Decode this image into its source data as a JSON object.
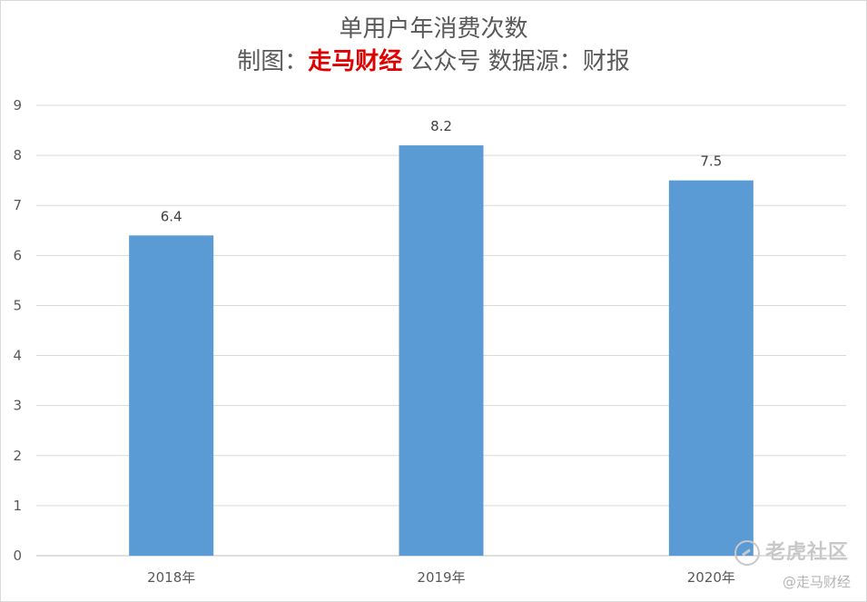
{
  "chart_data": {
    "type": "bar",
    "title_line1": "单用户年消费次数",
    "title_line2_prefix": "制图：",
    "title_line2_brand": "走马财经",
    "title_line2_suffix": " 公众号  数据源：财报",
    "categories": [
      "2018年",
      "2019年",
      "2020年"
    ],
    "values": [
      6.4,
      8.2,
      7.5
    ],
    "data_labels": [
      "6.4",
      "8.2",
      "7.5"
    ],
    "ylim": [
      0,
      9
    ],
    "yticks": [
      "0",
      "1",
      "2",
      "3",
      "4",
      "5",
      "6",
      "7",
      "8",
      "9"
    ],
    "grid": true,
    "bar_color": "#5b9bd5",
    "brand_color": "#e00000"
  },
  "watermark": {
    "site_name": "老虎社区",
    "handle": "@走马财经",
    "icon": "tiger-community-logo-icon"
  }
}
